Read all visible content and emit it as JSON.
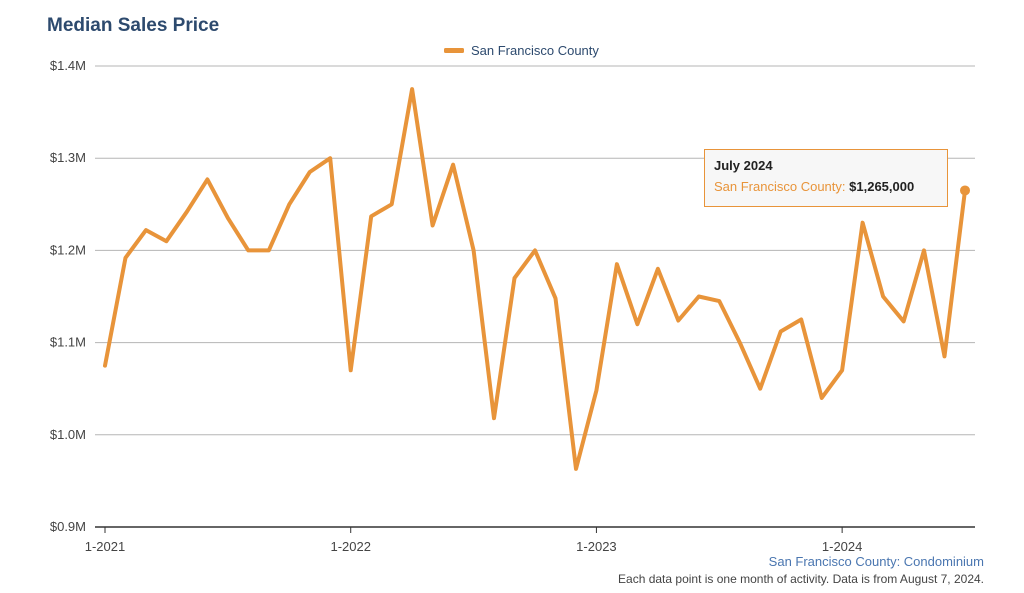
{
  "chart_data": {
    "type": "line",
    "title": "Median Sales Price",
    "xlabel": "",
    "ylabel": "",
    "x": [
      "1-2021",
      "2-2021",
      "3-2021",
      "4-2021",
      "5-2021",
      "6-2021",
      "7-2021",
      "8-2021",
      "9-2021",
      "10-2021",
      "11-2021",
      "12-2021",
      "1-2022",
      "2-2022",
      "3-2022",
      "4-2022",
      "5-2022",
      "6-2022",
      "7-2022",
      "8-2022",
      "9-2022",
      "10-2022",
      "11-2022",
      "12-2022",
      "1-2023",
      "2-2023",
      "3-2023",
      "4-2023",
      "5-2023",
      "6-2023",
      "7-2023",
      "8-2023",
      "9-2023",
      "10-2023",
      "11-2023",
      "12-2023",
      "1-2024",
      "2-2024",
      "3-2024",
      "4-2024",
      "5-2024",
      "6-2024",
      "7-2024"
    ],
    "x_ticks": [
      "1-2021",
      "1-2022",
      "1-2023",
      "1-2024"
    ],
    "y_ticks": [
      "$0.9M",
      "$1.0M",
      "$1.1M",
      "$1.2M",
      "$1.3M",
      "$1.4M"
    ],
    "ylim": [
      900000,
      1400000
    ],
    "grid": true,
    "legend_placement": "top-center",
    "series": [
      {
        "name": "San Francisco County",
        "color": "#e8943a",
        "values": [
          1075000,
          1192000,
          1222000,
          1210000,
          1242000,
          1277000,
          1235000,
          1200000,
          1200000,
          1250000,
          1285000,
          1300000,
          1070000,
          1237000,
          1250000,
          1375000,
          1227000,
          1293000,
          1200000,
          1018000,
          1170000,
          1200000,
          1148000,
          963000,
          1048000,
          1185000,
          1120000,
          1180000,
          1124000,
          1150000,
          1145000,
          1100000,
          1050000,
          1112000,
          1125000,
          1040000,
          1070000,
          1230000,
          1150000,
          1123000,
          1200000,
          1085000,
          1265000
        ]
      }
    ],
    "tooltip": {
      "date": "July 2024",
      "series": "San Francisco County:",
      "value": "$1,265,000"
    }
  },
  "note": {
    "subtitle": "San Francisco County: Condominium",
    "footnote": "Each data point is one month of activity. Data is from August 7, 2024."
  }
}
